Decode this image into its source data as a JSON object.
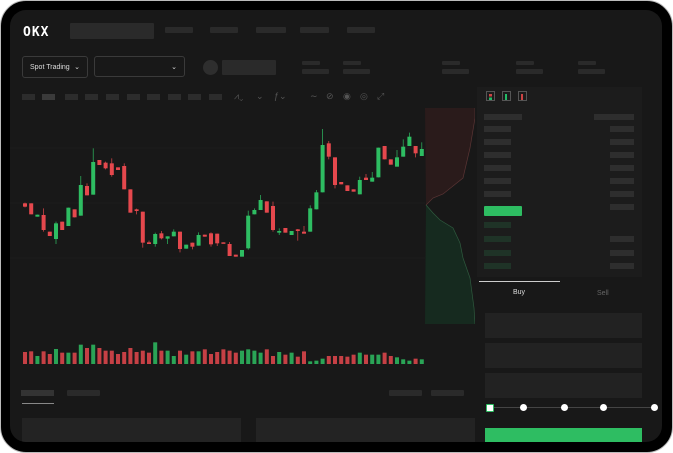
{
  "header": {
    "logo": "OKX"
  },
  "market": {
    "mode_label": "Spot Trading",
    "mode_icon": "chevron-down-icon",
    "pair_icon": "chevron-down-icon"
  },
  "order_form": {
    "tabs": [
      {
        "label": "Buy",
        "active": true
      },
      {
        "label": "Sell",
        "active": false
      }
    ],
    "slider_value": 0,
    "slider_steps": 5
  },
  "colors": {
    "up": "#2ebd62",
    "down": "#e5484d",
    "background": "#181818",
    "panel": "#1c1c1c"
  },
  "chart_data": {
    "type": "candlestick",
    "ohlc": [
      [
        200,
        202,
        188,
        190
      ],
      [
        200,
        200,
        167,
        167
      ],
      [
        160,
        166,
        160,
        166
      ],
      [
        165,
        185,
        115,
        120
      ],
      [
        115,
        115,
        102,
        102
      ],
      [
        93,
        145,
        78,
        140
      ],
      [
        145,
        145,
        120,
        120
      ],
      [
        132,
        187,
        132,
        187
      ],
      [
        182,
        182,
        158,
        158
      ],
      [
        163,
        282,
        163,
        255
      ],
      [
        252,
        260,
        224,
        224
      ],
      [
        226,
        365,
        226,
        324
      ],
      [
        330,
        330,
        315,
        315
      ],
      [
        322,
        325,
        302,
        305
      ],
      [
        320,
        335,
        280,
        285
      ],
      [
        308,
        308,
        300,
        300
      ],
      [
        312,
        320,
        242,
        242
      ],
      [
        242,
        242,
        172,
        172
      ],
      [
        182,
        184,
        167,
        177
      ],
      [
        175,
        175,
        67,
        82
      ],
      [
        83,
        88,
        78,
        78
      ],
      [
        78,
        112,
        70,
        108
      ],
      [
        110,
        117,
        92,
        95
      ],
      [
        94,
        101,
        78,
        101
      ],
      [
        101,
        122,
        101,
        115
      ],
      [
        115,
        115,
        53,
        63
      ],
      [
        64,
        76,
        64,
        76
      ],
      [
        82,
        82,
        62,
        70
      ],
      [
        73,
        113,
        73,
        105
      ],
      [
        106,
        106,
        100,
        100
      ],
      [
        110,
        113,
        70,
        77
      ],
      [
        109,
        109,
        72,
        80
      ],
      [
        83,
        83,
        80,
        80
      ],
      [
        78,
        84,
        42,
        42
      ],
      [
        46,
        46,
        40,
        40
      ],
      [
        40,
        60,
        40,
        60
      ],
      [
        65,
        178,
        61,
        163
      ],
      [
        167,
        185,
        167,
        180
      ],
      [
        180,
        225,
        180,
        210
      ],
      [
        206,
        206,
        172,
        172
      ],
      [
        192,
        205,
        115,
        120
      ],
      [
        112,
        125,
        105,
        117
      ],
      [
        126,
        126,
        112,
        112
      ],
      [
        105,
        117,
        105,
        117
      ],
      [
        122,
        123,
        88,
        117
      ],
      [
        115,
        132,
        109,
        109
      ],
      [
        115,
        194,
        115,
        185
      ],
      [
        182,
        240,
        182,
        233
      ],
      [
        233,
        423,
        233,
        375
      ],
      [
        380,
        387,
        332,
        340
      ],
      [
        338,
        338,
        245,
        255
      ],
      [
        264,
        264,
        257,
        257
      ],
      [
        254,
        254,
        237,
        237
      ],
      [
        242,
        242,
        235,
        235
      ],
      [
        227,
        280,
        227,
        270
      ],
      [
        277,
        288,
        270,
        270
      ],
      [
        265,
        294,
        265,
        277
      ],
      [
        278,
        367,
        278,
        367
      ],
      [
        372,
        372,
        332,
        332
      ],
      [
        332,
        332,
        316,
        316
      ],
      [
        310,
        360,
        310,
        338
      ],
      [
        340,
        392,
        340,
        370
      ],
      [
        372,
        412,
        372,
        400
      ],
      [
        372,
        372,
        338,
        350
      ],
      [
        342,
        383,
        342,
        363
      ]
    ],
    "volume": [
      36,
      38,
      24,
      38,
      30,
      45,
      34,
      34,
      34,
      58,
      48,
      58,
      48,
      40,
      40,
      30,
      36,
      48,
      36,
      40,
      34,
      65,
      40,
      40,
      24,
      40,
      28,
      38,
      38,
      44,
      30,
      36,
      44,
      40,
      34,
      40,
      44,
      40,
      34,
      44,
      24,
      36,
      28,
      34,
      22,
      38,
      8,
      10,
      16,
      24,
      24,
      24,
      22,
      28,
      34,
      28,
      28,
      28,
      34,
      24,
      20,
      14,
      10,
      16,
      14
    ]
  }
}
